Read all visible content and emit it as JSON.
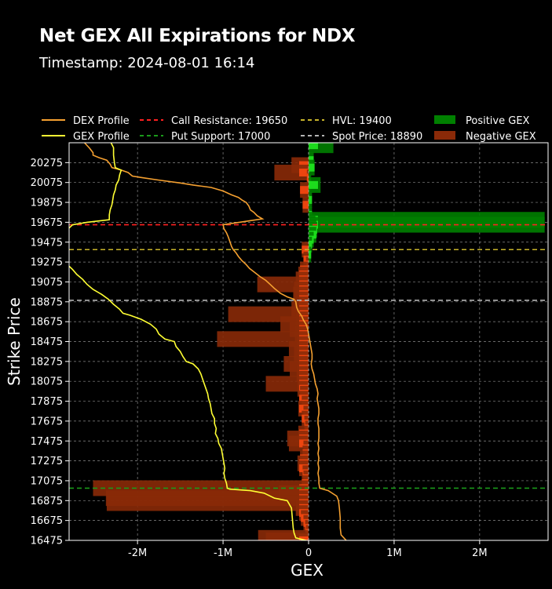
{
  "header": {
    "title": "Net GEX All Expirations for NDX",
    "subtitle": "Timestamp: 2024-08-01 16:14"
  },
  "legend": [
    {
      "label": "DEX Profile",
      "kind": "line",
      "color": "#f5a030",
      "dash": ""
    },
    {
      "label": "GEX Profile",
      "kind": "line",
      "color": "#ffff33",
      "dash": ""
    },
    {
      "label": "Call Resistance: 19650",
      "kind": "line",
      "color": "#ff2020",
      "dash": "5,4"
    },
    {
      "label": "Put Support: 17000",
      "kind": "line",
      "color": "#1a9a1a",
      "dash": "5,4"
    },
    {
      "label": "HVL: 19400",
      "kind": "line",
      "color": "#c8b42a",
      "dash": "5,4"
    },
    {
      "label": "Spot Price: 18890",
      "kind": "line",
      "color": "#b4b4b4",
      "dash": "5,4"
    },
    {
      "label": "Positive GEX",
      "kind": "patch",
      "color": "#008000",
      "dash": ""
    },
    {
      "label": "Negative GEX",
      "kind": "patch",
      "color": "#8a2a08",
      "dash": ""
    }
  ],
  "chart_data": {
    "type": "bar",
    "orientation": "horizontal",
    "xlabel": "GEX",
    "ylabel": "Strike Price",
    "xlim": [
      -2800000,
      2800000
    ],
    "ylim": [
      16475,
      20475
    ],
    "x_ticks": [
      {
        "value": -2000000,
        "label": "-2M"
      },
      {
        "value": -1000000,
        "label": "-1M"
      },
      {
        "value": 0,
        "label": "0"
      },
      {
        "value": 1000000,
        "label": "1M"
      },
      {
        "value": 2000000,
        "label": "2M"
      }
    ],
    "y_ticks": [
      16475,
      16675,
      16875,
      17075,
      17275,
      17475,
      17675,
      17875,
      18075,
      18275,
      18475,
      18675,
      18875,
      19075,
      19275,
      19475,
      19675,
      19875,
      20075,
      20275
    ],
    "grid": true,
    "legend_position": "top",
    "colors": {
      "positive_gex": "#008000",
      "negative_gex": "#8a2a08",
      "dex_profile": "#f5a030",
      "gex_profile": "#ffff33",
      "call_resistance": "#ff2020",
      "put_support": "#1a9a1a",
      "hvl": "#c8b42a",
      "spot_price": "#b4b4b4"
    },
    "levels": {
      "call_resistance": 19650,
      "put_support": 17000,
      "hvl": 19400,
      "spot_price": 18890
    },
    "bars": [
      {
        "strike": 20450,
        "value": 290000
      },
      {
        "strike": 20300,
        "value": 60000
      },
      {
        "strike": 20250,
        "value": -200000
      },
      {
        "strike": 20225,
        "value": 70000
      },
      {
        "strike": 20175,
        "value": -400000
      },
      {
        "strike": 20125,
        "value": -20000
      },
      {
        "strike": 20075,
        "value": 30000
      },
      {
        "strike": 20050,
        "value": 140000
      },
      {
        "strike": 20000,
        "value": -100000
      },
      {
        "strike": 19900,
        "value": 40000
      },
      {
        "strike": 19850,
        "value": -70000
      },
      {
        "strike": 19750,
        "value": 40000
      },
      {
        "strike": 19700,
        "value": 2760000
      },
      {
        "strike": 19675,
        "value": 80000
      },
      {
        "strike": 19650,
        "value": 2760000
      },
      {
        "strike": 19625,
        "value": 90000
      },
      {
        "strike": 19600,
        "value": 100000
      },
      {
        "strike": 19550,
        "value": 90000
      },
      {
        "strike": 19500,
        "value": 60000
      },
      {
        "strike": 19450,
        "value": 40000
      },
      {
        "strike": 19400,
        "value": -80000
      },
      {
        "strike": 19350,
        "value": 30000
      },
      {
        "strike": 19300,
        "value": -60000
      },
      {
        "strike": 19250,
        "value": -30000
      },
      {
        "strike": 19200,
        "value": -100000
      },
      {
        "strike": 19150,
        "value": -120000
      },
      {
        "strike": 19100,
        "value": -150000
      },
      {
        "strike": 19050,
        "value": -600000
      },
      {
        "strike": 19000,
        "value": -170000
      },
      {
        "strike": 18950,
        "value": -180000
      },
      {
        "strike": 18900,
        "value": -120000
      },
      {
        "strike": 18850,
        "value": -160000
      },
      {
        "strike": 18800,
        "value": -200000
      },
      {
        "strike": 18750,
        "value": -940000
      },
      {
        "strike": 18700,
        "value": -150000
      },
      {
        "strike": 18650,
        "value": -330000
      },
      {
        "strike": 18600,
        "value": -220000
      },
      {
        "strike": 18550,
        "value": -160000
      },
      {
        "strike": 18500,
        "value": -1070000
      },
      {
        "strike": 18450,
        "value": -140000
      },
      {
        "strike": 18400,
        "value": -230000
      },
      {
        "strike": 18350,
        "value": -170000
      },
      {
        "strike": 18300,
        "value": -130000
      },
      {
        "strike": 18250,
        "value": -290000
      },
      {
        "strike": 18200,
        "value": -220000
      },
      {
        "strike": 18150,
        "value": -140000
      },
      {
        "strike": 18100,
        "value": -120000
      },
      {
        "strike": 18050,
        "value": -500000
      },
      {
        "strike": 18000,
        "value": -130000
      },
      {
        "strike": 17950,
        "value": -100000
      },
      {
        "strike": 17900,
        "value": -110000
      },
      {
        "strike": 17850,
        "value": -80000
      },
      {
        "strike": 17800,
        "value": -120000
      },
      {
        "strike": 17750,
        "value": -60000
      },
      {
        "strike": 17700,
        "value": -80000
      },
      {
        "strike": 17650,
        "value": -50000
      },
      {
        "strike": 17600,
        "value": -40000
      },
      {
        "strike": 17550,
        "value": -120000
      },
      {
        "strike": 17500,
        "value": -250000
      },
      {
        "strike": 17450,
        "value": -230000
      },
      {
        "strike": 17400,
        "value": -60000
      },
      {
        "strike": 17350,
        "value": -70000
      },
      {
        "strike": 17300,
        "value": -100000
      },
      {
        "strike": 17250,
        "value": -130000
      },
      {
        "strike": 17200,
        "value": -110000
      },
      {
        "strike": 17150,
        "value": -70000
      },
      {
        "strike": 17100,
        "value": -60000
      },
      {
        "strike": 17050,
        "value": -80000
      },
      {
        "strike": 17000,
        "value": -2520000
      },
      {
        "strike": 16950,
        "value": -350000
      },
      {
        "strike": 16900,
        "value": -2370000
      },
      {
        "strike": 16850,
        "value": -2360000
      },
      {
        "strike": 16800,
        "value": -150000
      },
      {
        "strike": 16750,
        "value": -110000
      },
      {
        "strike": 16700,
        "value": -90000
      },
      {
        "strike": 16650,
        "value": -60000
      },
      {
        "strike": 16600,
        "value": -40000
      },
      {
        "strike": 16550,
        "value": -30000
      },
      {
        "strike": 16500,
        "value": -590000
      },
      {
        "strike": 16475,
        "value": -500000
      }
    ],
    "dex_profile": [
      [
        -2620000,
        20475
      ],
      [
        -2560000,
        20420
      ],
      [
        -2520000,
        20375
      ],
      [
        -2520000,
        20350
      ],
      [
        -2450000,
        20325
      ],
      [
        -2360000,
        20300
      ],
      [
        -2320000,
        20260
      ],
      [
        -2300000,
        20225
      ],
      [
        -2190000,
        20200
      ],
      [
        -2110000,
        20175
      ],
      [
        -2060000,
        20140
      ],
      [
        -1950000,
        20125
      ],
      [
        -1760000,
        20100
      ],
      [
        -1500000,
        20070
      ],
      [
        -1350000,
        20050
      ],
      [
        -1140000,
        20025
      ],
      [
        -1000000,
        19990
      ],
      [
        -900000,
        19950
      ],
      [
        -820000,
        19925
      ],
      [
        -780000,
        19900
      ],
      [
        -730000,
        19875
      ],
      [
        -700000,
        19840
      ],
      [
        -680000,
        19800
      ],
      [
        -640000,
        19775
      ],
      [
        -600000,
        19740
      ],
      [
        -540000,
        19710
      ],
      [
        -770000,
        19680
      ],
      [
        -1000000,
        19650
      ],
      [
        -990000,
        19610
      ],
      [
        -960000,
        19570
      ],
      [
        -940000,
        19530
      ],
      [
        -920000,
        19480
      ],
      [
        -900000,
        19430
      ],
      [
        -880000,
        19400
      ],
      [
        -850000,
        19370
      ],
      [
        -820000,
        19330
      ],
      [
        -780000,
        19290
      ],
      [
        -730000,
        19250
      ],
      [
        -690000,
        19210
      ],
      [
        -630000,
        19170
      ],
      [
        -570000,
        19130
      ],
      [
        -500000,
        19090
      ],
      [
        -450000,
        19050
      ],
      [
        -400000,
        19010
      ],
      [
        -330000,
        18960
      ],
      [
        -250000,
        18925
      ],
      [
        -170000,
        18900
      ],
      [
        -150000,
        18875
      ],
      [
        -140000,
        18820
      ],
      [
        -120000,
        18780
      ],
      [
        -80000,
        18730
      ],
      [
        -60000,
        18690
      ],
      [
        -30000,
        18650
      ],
      [
        -10000,
        18600
      ],
      [
        0,
        18550
      ],
      [
        10000,
        18500
      ],
      [
        20000,
        18450
      ],
      [
        40000,
        18350
      ],
      [
        40000,
        18300
      ],
      [
        30000,
        18250
      ],
      [
        40000,
        18200
      ],
      [
        60000,
        18150
      ],
      [
        70000,
        18100
      ],
      [
        80000,
        18050
      ],
      [
        100000,
        18000
      ],
      [
        110000,
        17950
      ],
      [
        100000,
        17900
      ],
      [
        110000,
        17850
      ],
      [
        120000,
        17800
      ],
      [
        120000,
        17750
      ],
      [
        110000,
        17700
      ],
      [
        110000,
        17650
      ],
      [
        120000,
        17600
      ],
      [
        120000,
        17500
      ],
      [
        110000,
        17450
      ],
      [
        120000,
        17400
      ],
      [
        110000,
        17350
      ],
      [
        120000,
        17300
      ],
      [
        110000,
        17250
      ],
      [
        120000,
        17200
      ],
      [
        110000,
        17150
      ],
      [
        120000,
        17100
      ],
      [
        120000,
        17050
      ],
      [
        130000,
        17000
      ],
      [
        230000,
        16975
      ],
      [
        330000,
        16920
      ],
      [
        350000,
        16875
      ],
      [
        360000,
        16800
      ],
      [
        370000,
        16700
      ],
      [
        370000,
        16600
      ],
      [
        380000,
        16530
      ],
      [
        440000,
        16475
      ]
    ],
    "gex_profile": [
      [
        -2310000,
        20475
      ],
      [
        -2280000,
        20425
      ],
      [
        -2280000,
        20350
      ],
      [
        -2270000,
        20275
      ],
      [
        -2260000,
        20225
      ],
      [
        -2190000,
        20200
      ],
      [
        -2210000,
        20150
      ],
      [
        -2220000,
        20100
      ],
      [
        -2250000,
        20050
      ],
      [
        -2260000,
        20000
      ],
      [
        -2280000,
        19950
      ],
      [
        -2290000,
        19900
      ],
      [
        -2300000,
        19850
      ],
      [
        -2320000,
        19800
      ],
      [
        -2330000,
        19750
      ],
      [
        -2330000,
        19700
      ],
      [
        -2590000,
        19675
      ],
      [
        -2760000,
        19650
      ],
      [
        -2820000,
        19600
      ],
      [
        -2850000,
        19550
      ],
      [
        -2870000,
        19500
      ],
      [
        -2880000,
        19450
      ],
      [
        -2900000,
        19400
      ],
      [
        -2890000,
        19350
      ],
      [
        -2860000,
        19300
      ],
      [
        -2820000,
        19250
      ],
      [
        -2760000,
        19200
      ],
      [
        -2710000,
        19150
      ],
      [
        -2640000,
        19100
      ],
      [
        -2590000,
        19050
      ],
      [
        -2520000,
        19000
      ],
      [
        -2420000,
        18950
      ],
      [
        -2340000,
        18900
      ],
      [
        -2280000,
        18850
      ],
      [
        -2210000,
        18800
      ],
      [
        -2170000,
        18760
      ],
      [
        -2090000,
        18740
      ],
      [
        -1960000,
        18700
      ],
      [
        -1850000,
        18650
      ],
      [
        -1780000,
        18600
      ],
      [
        -1750000,
        18550
      ],
      [
        -1680000,
        18500
      ],
      [
        -1570000,
        18475
      ],
      [
        -1550000,
        18425
      ],
      [
        -1500000,
        18375
      ],
      [
        -1470000,
        18325
      ],
      [
        -1430000,
        18275
      ],
      [
        -1350000,
        18250
      ],
      [
        -1290000,
        18200
      ],
      [
        -1260000,
        18150
      ],
      [
        -1240000,
        18100
      ],
      [
        -1220000,
        18050
      ],
      [
        -1200000,
        18000
      ],
      [
        -1180000,
        17950
      ],
      [
        -1170000,
        17900
      ],
      [
        -1150000,
        17850
      ],
      [
        -1140000,
        17800
      ],
      [
        -1130000,
        17750
      ],
      [
        -1100000,
        17700
      ],
      [
        -1100000,
        17650
      ],
      [
        -1080000,
        17600
      ],
      [
        -1090000,
        17550
      ],
      [
        -1060000,
        17500
      ],
      [
        -1050000,
        17450
      ],
      [
        -1020000,
        17400
      ],
      [
        -1010000,
        17350
      ],
      [
        -1000000,
        17300
      ],
      [
        -990000,
        17250
      ],
      [
        -980000,
        17200
      ],
      [
        -990000,
        17150
      ],
      [
        -980000,
        17100
      ],
      [
        -960000,
        17050
      ],
      [
        -950000,
        17000
      ],
      [
        -920000,
        16990
      ],
      [
        -680000,
        16975
      ],
      [
        -520000,
        16950
      ],
      [
        -400000,
        16900
      ],
      [
        -250000,
        16875
      ],
      [
        -200000,
        16800
      ],
      [
        -190000,
        16700
      ],
      [
        -180000,
        16600
      ],
      [
        -170000,
        16550
      ],
      [
        -150000,
        16500
      ],
      [
        -30000,
        16475
      ]
    ]
  }
}
